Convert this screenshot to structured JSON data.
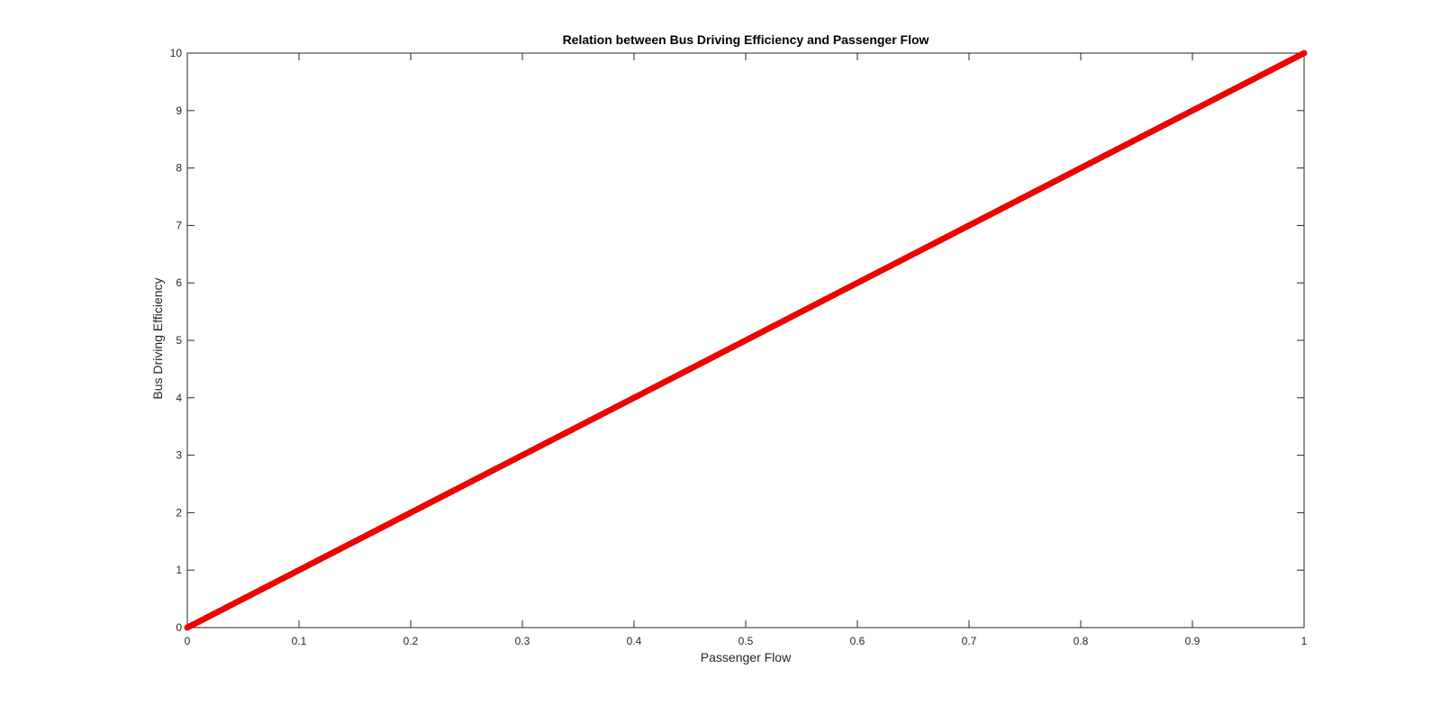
{
  "chart_data": {
    "type": "scatter",
    "title": "Relation between Bus Driving Efficiency and Passenger Flow",
    "xlabel": "Passenger Flow",
    "ylabel": "Bus Driving Efficiency",
    "xlim": [
      0,
      1
    ],
    "ylim": [
      0,
      10
    ],
    "xticks": [
      0,
      0.1,
      0.2,
      0.3,
      0.4,
      0.5,
      0.6,
      0.7,
      0.8,
      0.9,
      1
    ],
    "xtick_labels": [
      "0",
      "0.1",
      "0.2",
      "0.3",
      "0.4",
      "0.5",
      "0.6",
      "0.7",
      "0.8",
      "0.9",
      "1"
    ],
    "yticks": [
      0,
      1,
      2,
      3,
      4,
      5,
      6,
      7,
      8,
      9,
      10
    ],
    "ytick_labels": [
      "0",
      "1",
      "2",
      "3",
      "4",
      "5",
      "6",
      "7",
      "8",
      "9",
      "10"
    ],
    "grid": false,
    "series": [
      {
        "marker": "circle",
        "color": "#ff0000",
        "x": [
          0,
          0.05,
          0.1,
          0.15,
          0.2,
          0.25,
          0.3,
          0.35,
          0.4,
          0.45,
          0.5,
          0.55,
          0.6,
          0.65,
          0.7,
          0.75,
          0.8,
          0.85,
          0.9,
          0.95,
          1
        ],
        "y": [
          0,
          0.5,
          1,
          1.5,
          2,
          2.5,
          3,
          3.5,
          4,
          4.5,
          5,
          5.5,
          6,
          6.5,
          7,
          7.5,
          8,
          8.5,
          9,
          9.5,
          10
        ]
      }
    ]
  }
}
